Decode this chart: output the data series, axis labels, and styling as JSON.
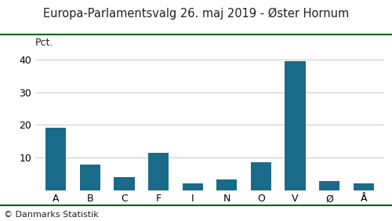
{
  "title": "Europa-Parlamentsvalg 26. maj 2019 - Øster Hornum",
  "categories": [
    "A",
    "B",
    "C",
    "F",
    "I",
    "N",
    "O",
    "V",
    "Ø",
    "Å"
  ],
  "values": [
    19.0,
    7.7,
    4.0,
    11.3,
    2.0,
    3.3,
    8.6,
    39.5,
    2.7,
    2.1
  ],
  "bar_color": "#1a6b8a",
  "ylabel": "Pct.",
  "ylim": [
    0,
    42
  ],
  "yticks": [
    0,
    10,
    20,
    30,
    40
  ],
  "background_color": "#ffffff",
  "footer": "© Danmarks Statistik",
  "title_color": "#222222",
  "line_color": "#006400",
  "grid_color": "#c8c8c8",
  "title_fontsize": 10.5,
  "axis_fontsize": 9,
  "footer_fontsize": 8
}
